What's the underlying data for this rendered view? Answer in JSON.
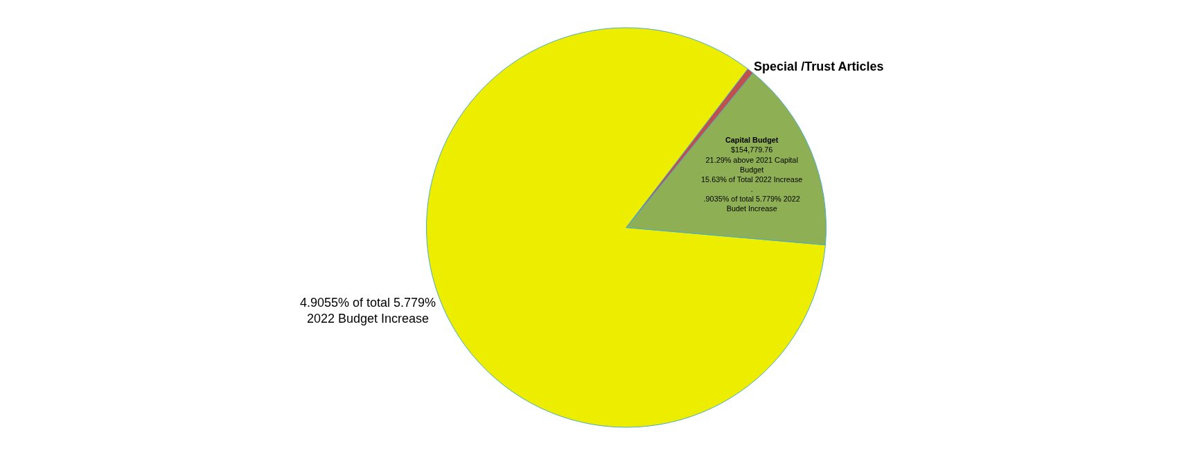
{
  "chart_data": {
    "type": "pie",
    "categories": [
      null,
      "Capital Budget",
      "Special /Trust Articles"
    ],
    "values": [
      4.9055,
      0.9035,
      0.03
    ],
    "colors": [
      "#eded00",
      "#8faf55",
      "#c0504d"
    ],
    "value_labels": [
      "4.9055% of total 5.779%\n2022 Budget Increase",
      "$154,779.76\n21.29% above 2021 Capital\nBudget\n15.63% of Total 2022 Increase\n.\n.9035% of total 5.779% 2022\nBudet Increase",
      null
    ],
    "legend": false
  }
}
